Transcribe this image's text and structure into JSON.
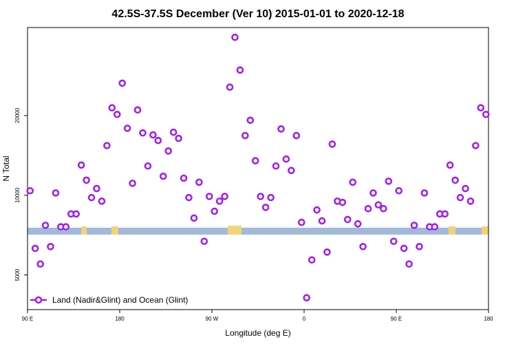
{
  "chart_data": {
    "type": "scatter",
    "title": "42.5S-37.5S December (Ver 10)   2015-01-01 to 2020-12-18",
    "x_label": "Longitude (deg E)",
    "y_label": "N Total",
    "xlim": [
      90,
      540
    ],
    "xticks": [
      {
        "value": 90,
        "label": "90 E"
      },
      {
        "value": 180,
        "label": "180"
      },
      {
        "value": 270,
        "label": "90 W"
      },
      {
        "value": 360,
        "label": "0"
      },
      {
        "value": 450,
        "label": "90 E"
      },
      {
        "value": 540,
        "label": "180"
      }
    ],
    "ylim": [
      3700,
      43000
    ],
    "yticks": [
      5000,
      10000,
      20000
    ],
    "log_y": true,
    "grid": false,
    "legend": "lower left",
    "series": [
      {
        "name": "Land (Nadir&Glint) and Ocean (Glint)",
        "color": "#a020f0",
        "x": [
          92.5,
          97.5,
          102.5,
          107.5,
          112.5,
          117.5,
          122.5,
          127.5,
          132.5,
          137.5,
          142.5,
          147.5,
          152.5,
          157.5,
          162.5,
          167.5,
          172.5,
          177.5,
          182.5,
          187.5,
          192.5,
          197.5,
          202.5,
          207.5,
          212.5,
          217.5,
          222.5,
          227.5,
          232.5,
          237.5,
          242.5,
          247.5,
          252.5,
          257.5,
          262.5,
          267.5,
          272.5,
          277.5,
          282.5,
          287.5,
          292.5,
          297.5,
          302.5,
          307.5,
          312.5,
          317.5,
          322.5,
          327.5,
          332.5,
          337.5,
          342.5,
          347.5,
          352.5,
          357.5,
          362.5,
          367.5,
          372.5,
          377.5,
          382.5,
          387.5,
          392.5,
          397.5,
          402.5,
          407.5,
          412.5,
          417.5,
          422.5,
          427.5,
          432.5,
          437.5,
          442.5,
          447.5,
          452.5,
          457.5,
          462.5,
          467.5,
          472.5,
          477.5,
          482.5,
          487.5,
          492.5,
          497.5,
          502.5,
          507.5,
          512.5,
          517.5,
          522.5,
          527.5,
          532.5,
          537.5
        ],
        "values": [
          10400,
          6300,
          5500,
          7700,
          6400,
          10200,
          7600,
          7600,
          8500,
          8500,
          13000,
          11400,
          9800,
          10600,
          9500,
          15400,
          21400,
          20200,
          26500,
          17900,
          11100,
          21000,
          17200,
          12900,
          16900,
          16100,
          11800,
          14700,
          17300,
          16400,
          11600,
          9800,
          8200,
          11200,
          6700,
          9900,
          8700,
          9500,
          9900,
          25600,
          39500,
          29700,
          16800,
          19200,
          13500,
          9900,
          9000,
          9800,
          12900,
          17800,
          13700,
          12400,
          16800,
          7900,
          4100,
          5700,
          8800,
          8000,
          6100,
          15600,
          9500,
          9400,
          8100,
          11200,
          7800,
          6400,
          8900,
          10200,
          9200,
          8900,
          11300,
          6700,
          10400,
          6300,
          5500,
          7700,
          6400,
          10200,
          7600,
          7600,
          8500,
          8500,
          13000,
          11400,
          9800,
          10600,
          9500,
          15400,
          21400,
          20200
        ]
      }
    ]
  }
}
